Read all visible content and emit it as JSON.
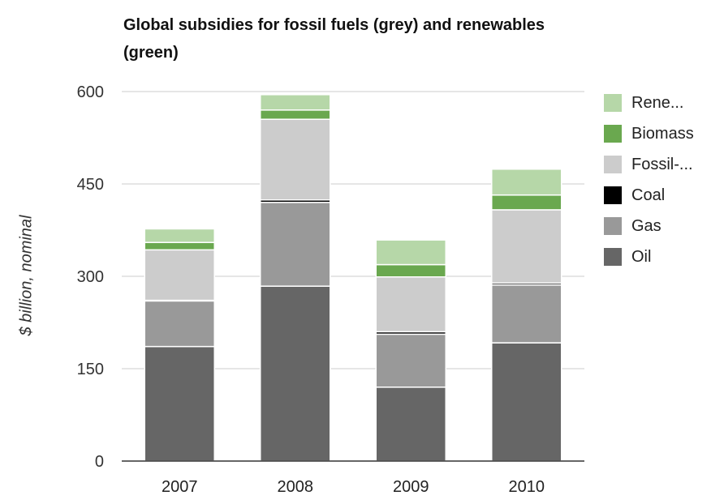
{
  "chart_data": {
    "type": "bar",
    "stacked": true,
    "title": "Global subsidies for fossil fuels (grey) and renewables (green)",
    "ylabel": "$ billion, nominal",
    "xlabel": "",
    "categories": [
      "2007",
      "2008",
      "2009",
      "2010"
    ],
    "ylim": [
      0,
      600
    ],
    "yticks": [
      0,
      150,
      300,
      450,
      600
    ],
    "grid": true,
    "legend_position": "right",
    "series": [
      {
        "name": "Oil",
        "color": "#666666",
        "values": [
          186,
          284,
          120,
          192
        ]
      },
      {
        "name": "Gas",
        "color": "#999999",
        "values": [
          74,
          136,
          86,
          94
        ]
      },
      {
        "name": "Coal",
        "color": "#000000",
        "values": [
          1,
          4,
          4,
          3
        ]
      },
      {
        "name": "Fossil-...",
        "color": "#cccccc",
        "values": [
          82,
          131,
          89,
          119
        ]
      },
      {
        "name": "Biomass",
        "color": "#6aa84f",
        "values": [
          12,
          15,
          20,
          24
        ]
      },
      {
        "name": "Rene...",
        "color": "#b6d7a8",
        "values": [
          22,
          25,
          40,
          42
        ]
      }
    ]
  }
}
